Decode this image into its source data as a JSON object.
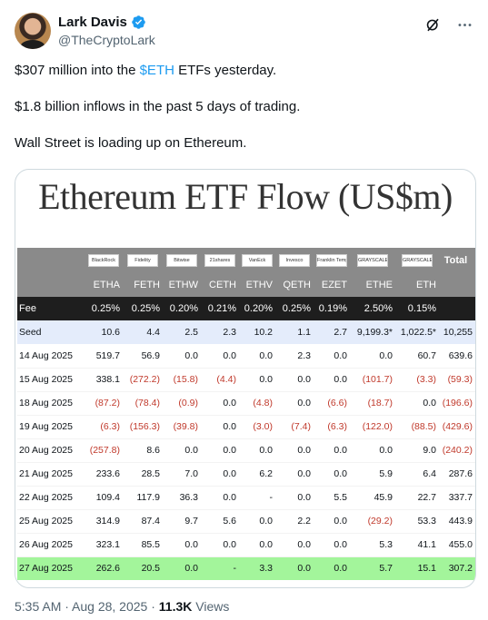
{
  "author": {
    "name": "Lark Davis",
    "handle": "@TheCryptoLark"
  },
  "tweet": {
    "line1_pre": "$307 million into the ",
    "line1_link": "$ETH",
    "line1_post": " ETFs yesterday.",
    "line2": "$1.8 billion inflows in the past 5 days of trading.",
    "line3": "Wall Street is loading up on Ethereum."
  },
  "image": {
    "title": "Ethereum ETF Flow (US$m)",
    "issuers": [
      "BlackRock",
      "Fidelity",
      "Bitwise",
      "21shares",
      "VanEck",
      "Invesco",
      "Franklin Templeton",
      "GRAYSCALE",
      "GRAYSCALE"
    ],
    "total_label": "Total",
    "tickers": [
      "ETHA",
      "FETH",
      "ETHW",
      "CETH",
      "ETHV",
      "QETH",
      "EZET",
      "ETHE",
      "ETH"
    ],
    "fee": {
      "label": "Fee",
      "values": [
        "0.25%",
        "0.25%",
        "0.20%",
        "0.21%",
        "0.20%",
        "0.25%",
        "0.19%",
        "2.50%",
        "0.15%",
        ""
      ]
    },
    "seed": {
      "label": "Seed",
      "values": [
        "10.6",
        "4.4",
        "2.5",
        "2.3",
        "10.2",
        "1.1",
        "2.7",
        "9,199.3*",
        "1,022.5*",
        "10,255"
      ]
    },
    "rows": [
      {
        "date": "14 Aug 2025",
        "values": [
          "519.7",
          "56.9",
          "0.0",
          "0.0",
          "0.0",
          "2.3",
          "0.0",
          "0.0",
          "60.7",
          "639.6"
        ]
      },
      {
        "date": "15 Aug 2025",
        "values": [
          "338.1",
          "(272.2)",
          "(15.8)",
          "(4.4)",
          "0.0",
          "0.0",
          "0.0",
          "(101.7)",
          "(3.3)",
          "(59.3)"
        ]
      },
      {
        "date": "18 Aug 2025",
        "values": [
          "(87.2)",
          "(78.4)",
          "(0.9)",
          "0.0",
          "(4.8)",
          "0.0",
          "(6.6)",
          "(18.7)",
          "0.0",
          "(196.6)"
        ]
      },
      {
        "date": "19 Aug 2025",
        "values": [
          "(6.3)",
          "(156.3)",
          "(39.8)",
          "0.0",
          "(3.0)",
          "(7.4)",
          "(6.3)",
          "(122.0)",
          "(88.5)",
          "(429.6)"
        ]
      },
      {
        "date": "20 Aug 2025",
        "values": [
          "(257.8)",
          "8.6",
          "0.0",
          "0.0",
          "0.0",
          "0.0",
          "0.0",
          "0.0",
          "9.0",
          "(240.2)"
        ]
      },
      {
        "date": "21 Aug 2025",
        "values": [
          "233.6",
          "28.5",
          "7.0",
          "0.0",
          "6.2",
          "0.0",
          "0.0",
          "5.9",
          "6.4",
          "287.6"
        ]
      },
      {
        "date": "22 Aug 2025",
        "values": [
          "109.4",
          "117.9",
          "36.3",
          "0.0",
          "-",
          "0.0",
          "5.5",
          "45.9",
          "22.7",
          "337.7"
        ]
      },
      {
        "date": "25 Aug 2025",
        "values": [
          "314.9",
          "87.4",
          "9.7",
          "5.6",
          "0.0",
          "2.2",
          "0.0",
          "(29.2)",
          "53.3",
          "443.9"
        ]
      },
      {
        "date": "26 Aug 2025",
        "values": [
          "323.1",
          "85.5",
          "0.0",
          "0.0",
          "0.0",
          "0.0",
          "0.0",
          "5.3",
          "41.1",
          "455.0"
        ]
      },
      {
        "date": "27 Aug 2025",
        "values": [
          "262.6",
          "20.5",
          "0.0",
          "-",
          "3.3",
          "0.0",
          "0.0",
          "5.7",
          "15.1",
          "307.2"
        ]
      }
    ]
  },
  "footer": {
    "time": "5:35 AM · Aug 28, 2025 · ",
    "views_count": "11.3K",
    "views_label": " Views"
  },
  "colors": {
    "link": "#1d9bf0",
    "verified": "#1d9bf0",
    "negative": "#c0392b",
    "highlight_row": "#a3f59b",
    "seed_row": "#e4ecfb"
  },
  "icons": [
    "verified-badge-icon",
    "grok-icon",
    "more-icon"
  ]
}
